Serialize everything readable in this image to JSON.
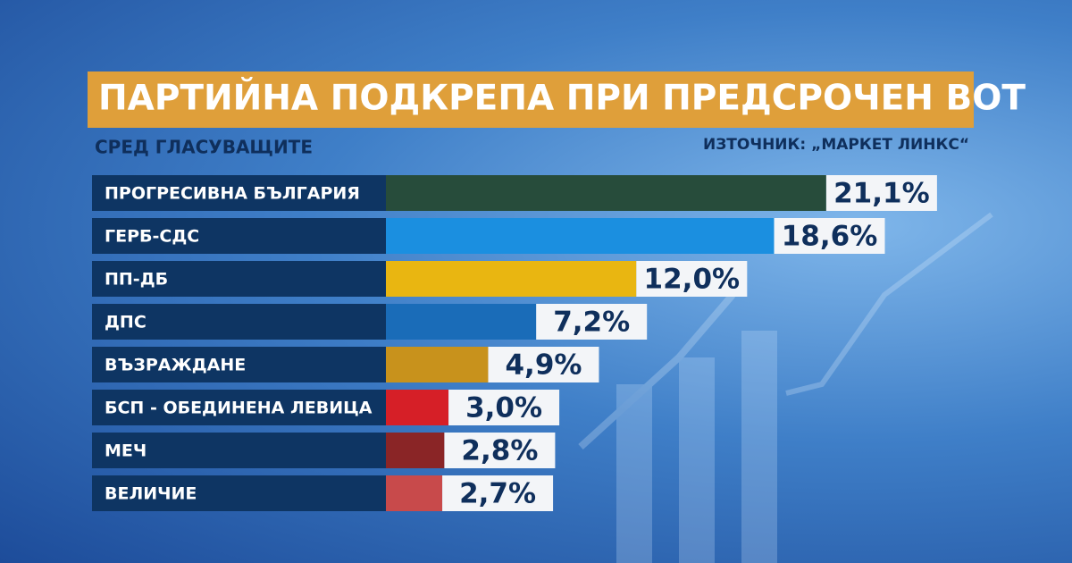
{
  "chart_data": {
    "type": "bar",
    "orientation": "horizontal",
    "title": "ПАРТИЙНА ПОДКРЕПА ПРИ ПРЕДСРОЧЕН ВОТ",
    "subtitle": "СРЕД ГЛАСУВАЩИТЕ",
    "source": "ИЗТОЧНИК: „МАРКЕТ ЛИНКС“",
    "categories": [
      "ПРОГРЕСИВНА БЪЛГАРИЯ",
      "ГЕРБ-СДС",
      "ПП-ДБ",
      "ДПС",
      "ВЪЗРАЖДАНЕ",
      "БСП - ОБЕДИНЕНА ЛЕВИЦА",
      "МЕЧ",
      "ВЕЛИЧИЕ"
    ],
    "values": [
      21.1,
      18.6,
      12.0,
      7.2,
      4.9,
      3.0,
      2.8,
      2.7
    ],
    "value_labels": [
      "21,1%",
      "18,6%",
      "12,0%",
      "7,2%",
      "4,9%",
      "3,0%",
      "2,8%",
      "2,7%"
    ],
    "colors": [
      "#274c3b",
      "#1b8fe0",
      "#e9b611",
      "#1a6cb8",
      "#c8921c",
      "#d61f27",
      "#8a2526",
      "#c84a4b"
    ]
  }
}
